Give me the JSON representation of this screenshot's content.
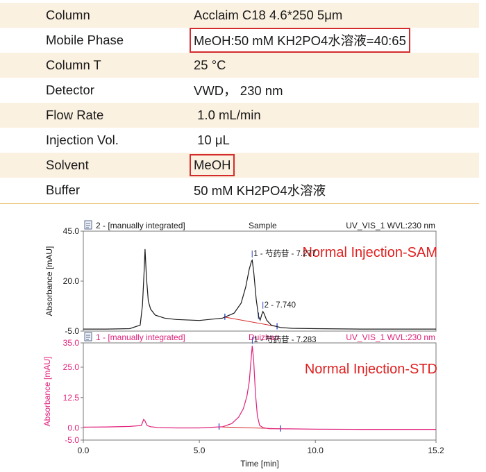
{
  "parameters": [
    {
      "key": "Column",
      "value": "Acclaim C18 4.6*250 5μm",
      "highlighted": false
    },
    {
      "key": "Mobile Phase",
      "value": "MeOH:50 mM KH2PO4水溶液=40:65",
      "highlighted": true
    },
    {
      "key": "Column T",
      "value": "25 °C",
      "highlighted": false
    },
    {
      "key": "Detector",
      "value": "VWD，  230 nm",
      "highlighted": false
    },
    {
      "key": "Flow Rate",
      "value": " 1.0 mL/min",
      "highlighted": false
    },
    {
      "key": "Injection Vol.",
      "value": " 10 μL",
      "highlighted": false
    },
    {
      "key": "Solvent",
      "value": "MeOH",
      "highlighted": true
    },
    {
      "key": "Buffer",
      "value": "50 mM KH2PO4水溶液",
      "highlighted": false
    }
  ],
  "colors": {
    "band": "#fbf1e1",
    "separator": "#e7b45a",
    "highlight_box": "#d42c2c",
    "trace_sample": "#1a1a1a",
    "trace_std": "#e0207a",
    "baseline": "#d42c2c",
    "marker": "#2a46c8",
    "annotation_red": "#e02020"
  },
  "chart_data": [
    {
      "type": "line",
      "header_left": "2 -  [manually integrated]",
      "header_center": "Sample",
      "header_right": "UV_VIS_1 WVL:230 nm",
      "annotation": "Normal Injection-SAM",
      "ylabel": "Absorbance [mAU]",
      "ylim": [
        -5.0,
        45.0
      ],
      "yticks": [
        "45.0",
        "20.0",
        "-5.0"
      ],
      "xlim": [
        0.0,
        15.2
      ],
      "peaks": [
        {
          "label": "1 - 芍药苷 - 7.277",
          "rt": 7.277
        },
        {
          "label": "2 - 7.740",
          "rt": 7.74
        }
      ],
      "series": [
        {
          "x": [
            0.0,
            1.0,
            2.0,
            2.45,
            2.55,
            2.62,
            2.66,
            2.72,
            2.8,
            2.9,
            3.1,
            3.5,
            4.0,
            5.0,
            6.0,
            6.5,
            6.8,
            7.0,
            7.15,
            7.25,
            7.28,
            7.35,
            7.45,
            7.55,
            7.62,
            7.7,
            7.74,
            7.8,
            7.9,
            8.1,
            8.5,
            9.0,
            10.0,
            12.0,
            14.0,
            15.2
          ],
          "y": [
            -4.0,
            -4.0,
            -3.8,
            -2.0,
            8.0,
            25.0,
            36.0,
            22.0,
            10.0,
            6.0,
            3.0,
            1.5,
            0.8,
            0.3,
            1.5,
            4.0,
            9.0,
            17.0,
            26.0,
            30.0,
            30.5,
            24.0,
            11.0,
            2.5,
            0.5,
            3.5,
            4.8,
            3.5,
            0.5,
            -2.0,
            -3.2,
            -3.6,
            -3.8,
            -4.0,
            -4.0,
            -4.0
          ]
        }
      ],
      "integration_marks": [
        6.1,
        7.55,
        8.35
      ]
    },
    {
      "type": "line",
      "header_left": "1 -  [manually integrated]",
      "header_center": "Duizhao",
      "header_right": "UV_VIS_1 WVL:230 nm",
      "annotation": "Normal Injection-STD",
      "ylabel": "Absorbance [mAU]",
      "ylim": [
        -5.0,
        35.0
      ],
      "yticks": [
        "35.0",
        "25.0",
        "12.5",
        "0.0",
        "-5.0"
      ],
      "xlim": [
        0.0,
        15.2
      ],
      "xticks": [
        "0.0",
        "5.0",
        "10.0",
        "15.2"
      ],
      "xlabel": "Time [min]",
      "peaks": [
        {
          "label": "1 - 芍药苷 - 7.283",
          "rt": 7.283
        }
      ],
      "series": [
        {
          "x": [
            0.0,
            1.0,
            2.0,
            2.5,
            2.6,
            2.65,
            2.75,
            2.9,
            3.2,
            4.0,
            5.0,
            6.0,
            6.4,
            6.7,
            6.9,
            7.05,
            7.15,
            7.22,
            7.28,
            7.34,
            7.42,
            7.5,
            7.6,
            7.75,
            8.0,
            9.0,
            10.0,
            12.0,
            14.0,
            15.2
          ],
          "y": [
            0.3,
            0.4,
            0.6,
            1.0,
            3.5,
            3.0,
            1.0,
            0.5,
            0.2,
            0.0,
            0.0,
            0.5,
            1.8,
            4.5,
            8.0,
            13.0,
            19.0,
            27.0,
            33.8,
            28.0,
            14.0,
            5.0,
            1.0,
            0.1,
            -0.3,
            -0.4,
            -0.5,
            -0.6,
            -0.6,
            -0.6
          ]
        }
      ],
      "integration_marks": [
        5.85,
        8.5
      ]
    }
  ]
}
